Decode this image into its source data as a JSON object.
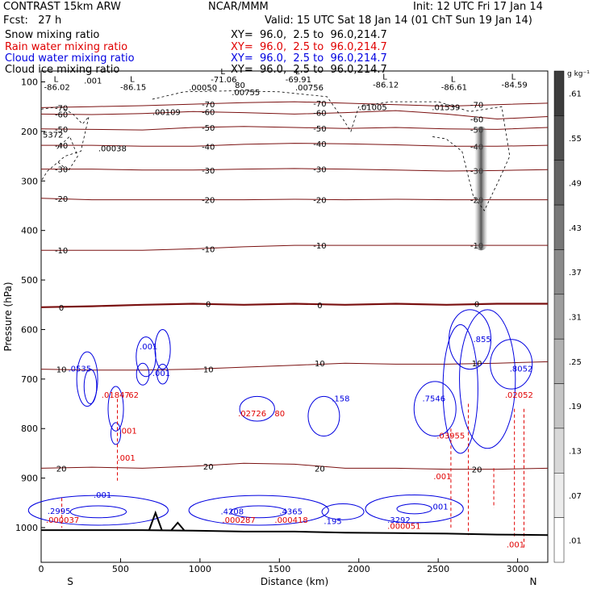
{
  "header": {
    "title": "CONTRAST 15km ARW",
    "center": "NCAR/MMM",
    "init": "Init: 12 UTC Fri 17 Jan 14",
    "fcst": "Fcst:   27 h",
    "valid": "Valid: 15 UTC Sat 18 Jan 14 (01 ChT Sun 19 Jan 14)",
    "fields": [
      {
        "label": "Snow mixing ratio",
        "xy": "XY=  96.0,  2.5 to  96.0,214.7",
        "color": "#000000"
      },
      {
        "label": "Rain water mixing ratio",
        "xy": "XY=  96.0,  2.5 to  96.0,214.7",
        "color": "#e00000"
      },
      {
        "label": "Cloud water mixing ratio",
        "xy": "XY=  96.0,  2.5 to  96.0,214.7",
        "color": "#0000e0"
      },
      {
        "label": "Cloud ice mixing ratio",
        "xy": "XY=  96.0,  2.5 to  96.0,214.7",
        "color": "#000000"
      }
    ]
  },
  "colorbar": {
    "unit": "g kg⁻¹",
    "labels": [
      ".61",
      ".55",
      ".49",
      ".43",
      ".37",
      ".31",
      ".25",
      ".19",
      ".13",
      ".07",
      ".01"
    ]
  },
  "chart_data": {
    "type": "contour",
    "xlabel": "Distance (km)",
    "ylabel": "Pressure (hPa)",
    "xlim": [
      0,
      3190
    ],
    "ylim": [
      1050,
      50
    ],
    "x_ticks": [
      "0",
      "500",
      "1000",
      "1500",
      "2000",
      "2500",
      "3000"
    ],
    "y_ticks": [
      "100",
      "200",
      "300",
      "400",
      "500",
      "600",
      "700",
      "800",
      "900",
      "1000"
    ],
    "x_end_labels": {
      "left": "S",
      "right": "N"
    },
    "temperature_contours": [
      {
        "label": "-70",
        "p": [
          152,
          150,
          148,
          145,
          142,
          140,
          143,
          146,
          149,
          146,
          143
        ]
      },
      {
        "label": "-60",
        "p": [
          165,
          166,
          164,
          160,
          162,
          165,
          162,
          158,
          165,
          175,
          170
        ]
      },
      {
        "label": "-50",
        "p": [
          195,
          196,
          197,
          192,
          190,
          192,
          194,
          192,
          195,
          196,
          192
        ]
      },
      {
        "label": "-40",
        "p": [
          228,
          228,
          230,
          230,
          226,
          224,
          225,
          227,
          230,
          230,
          228
        ]
      },
      {
        "label": "-30",
        "p": [
          276,
          276,
          278,
          278,
          276,
          275,
          276,
          278,
          280,
          279,
          277
        ]
      },
      {
        "label": "-20",
        "p": [
          335,
          338,
          338,
          338,
          338,
          337,
          338,
          337,
          338,
          338,
          338
        ]
      },
      {
        "label": "-10",
        "p": [
          440,
          440,
          440,
          437,
          433,
          430,
          430,
          430,
          430,
          430,
          430
        ]
      },
      {
        "label": "0",
        "p": [
          555,
          553,
          550,
          548,
          550,
          548,
          550,
          548,
          550,
          548,
          548
        ]
      },
      {
        "label": "10",
        "p": [
          680,
          682,
          682,
          680,
          676,
          672,
          668,
          670,
          670,
          668,
          665
        ]
      },
      {
        "label": "20",
        "p": [
          880,
          878,
          880,
          876,
          870,
          872,
          880,
          880,
          882,
          882,
          880
        ]
      }
    ],
    "contour_x": [
      0,
      319,
      638,
      957,
      1276,
      1595,
      1914,
      2233,
      2552,
      2871,
      3190
    ],
    "extra_temperature_labels": [
      {
        "text": "-71.06",
        "x": 1150,
        "p": 88
      },
      {
        "text": "-69.91",
        "x": 1620,
        "p": 88
      },
      {
        "text": "-86.02",
        "x": 100,
        "p": 103
      },
      {
        "text": "-86.15",
        "x": 580,
        "p": 103
      },
      {
        "text": "-86.12",
        "x": 2170,
        "p": 98
      },
      {
        "text": "-86.61",
        "x": 2600,
        "p": 103
      },
      {
        "text": "-84.59",
        "x": 2980,
        "p": 98
      }
    ],
    "rain_labels": [
      {
        "text": ".01847",
        "x": 380,
        "p": 738
      },
      {
        "text": "62",
        "x": 550,
        "p": 738
      },
      {
        "text": ".001",
        "x": 490,
        "p": 810
      },
      {
        "text": ".001",
        "x": 480,
        "p": 865
      },
      {
        "text": ".02726",
        "x": 1240,
        "p": 775
      },
      {
        "text": "80",
        "x": 1470,
        "p": 775
      },
      {
        "text": ".03955",
        "x": 2490,
        "p": 820
      },
      {
        "text": ".001",
        "x": 2470,
        "p": 902
      },
      {
        "text": ".02052",
        "x": 2920,
        "p": 738
      },
      {
        "text": ".000037",
        "x": 30,
        "p": 990
      },
      {
        "text": ".000287",
        "x": 1140,
        "p": 990
      },
      {
        "text": ".000418",
        "x": 1470,
        "p": 990
      },
      {
        "text": ".000051",
        "x": 2180,
        "p": 1002
      },
      {
        "text": ".001",
        "x": 2930,
        "p": 1040
      }
    ],
    "cloud_water_labels": [
      {
        "text": ".0535",
        "x": 170,
        "p": 685
      },
      {
        "text": ".001",
        "x": 620,
        "p": 640
      },
      {
        "text": ".001",
        "x": 700,
        "p": 694
      },
      {
        "text": ".158",
        "x": 1830,
        "p": 745
      },
      {
        "text": ".7546",
        "x": 2400,
        "p": 745
      },
      {
        "text": ".855",
        "x": 2720,
        "p": 625
      },
      {
        "text": ".8052",
        "x": 2950,
        "p": 685
      },
      {
        "text": ".2995",
        "x": 40,
        "p": 972
      },
      {
        "text": ".001",
        "x": 330,
        "p": 940
      },
      {
        "text": ".4208",
        "x": 1130,
        "p": 973
      },
      {
        "text": ".4365",
        "x": 1500,
        "p": 973
      },
      {
        "text": ".195",
        "x": 1780,
        "p": 993
      },
      {
        "text": ".3292",
        "x": 2180,
        "p": 990
      },
      {
        "text": ".001",
        "x": 2450,
        "p": 963
      }
    ],
    "ice_labels": [
      {
        "text": ".001",
        "x": 270,
        "p": 103
      },
      {
        "text": ".00050",
        "x": 930,
        "p": 117
      },
      {
        "text": ".00755",
        "x": 1200,
        "p": 127
      },
      {
        "text": ".00756",
        "x": 1600,
        "p": 117
      },
      {
        "text": ".00109",
        "x": 700,
        "p": 167
      },
      {
        "text": ".00038",
        "x": 360,
        "p": 240
      },
      {
        "text": ".01005",
        "x": 2000,
        "p": 157
      },
      {
        "text": ".01539",
        "x": 2460,
        "p": 157
      },
      {
        "text": "80",
        "x": 1220,
        "p": 112
      },
      {
        "text": "5372",
        "x": 10,
        "p": 212
      }
    ],
    "snow_max": {
      "x": 2770,
      "p_top": 190,
      "p_bottom": 440
    },
    "terrain_p": [
      1005,
      1005,
      1005,
      1006,
      1008,
      1008,
      1010,
      1011,
      1012,
      1014,
      1015
    ]
  }
}
